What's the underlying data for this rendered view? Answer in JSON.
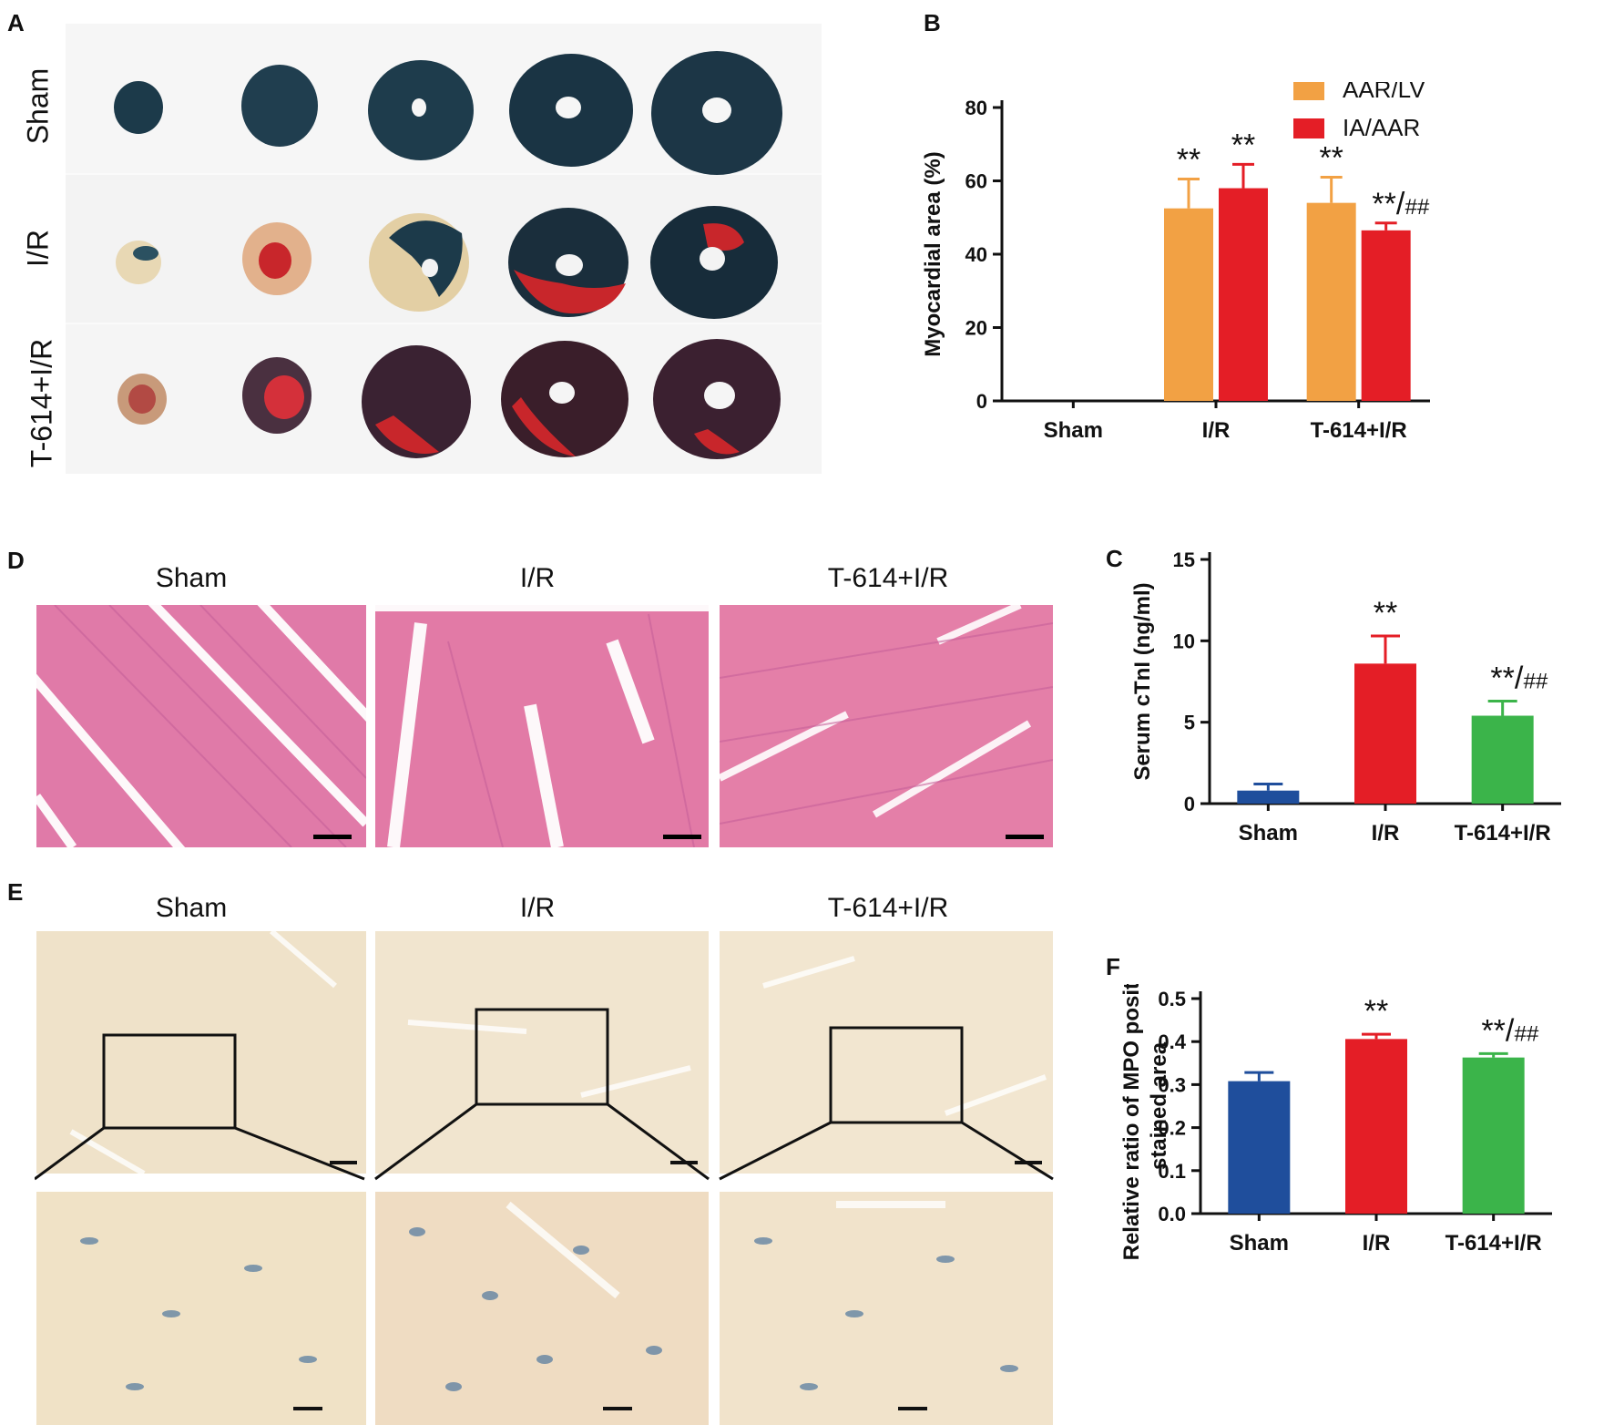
{
  "panels": {
    "a": {
      "letter": "A",
      "rows": [
        "Sham",
        "I/R",
        "T-614+I/R"
      ]
    },
    "d": {
      "letter": "D",
      "groups": [
        "Sham",
        "I/R",
        "T-614+I/R"
      ]
    },
    "e": {
      "letter": "E",
      "groups": [
        "Sham",
        "I/R",
        "T-614+I/R"
      ]
    }
  },
  "colors": {
    "orange": "#f2a144",
    "red": "#e41e26",
    "blue": "#1f4e9c",
    "green": "#3bb44a",
    "tissue_blue": "#1c3a4a",
    "infarct_red": "#c8262b",
    "he_pink": "#e27aa6",
    "ihc_beige": "#f1e4cc"
  },
  "chart_data": [
    {
      "panel": "B",
      "type": "bar",
      "categories": [
        "Sham",
        "I/R",
        "T-614+I/R"
      ],
      "ylabel": "Myocardial area (%)",
      "ylim": [
        0,
        80
      ],
      "yticks": [
        0,
        20,
        40,
        60,
        80
      ],
      "legend_position": "top-right",
      "series": [
        {
          "name": "AAR/LV",
          "color": "#f2a144",
          "values": [
            0,
            52.5,
            54.0
          ],
          "errors": [
            0,
            8.0,
            7.0
          ],
          "annotations": [
            "",
            "**",
            "**"
          ]
        },
        {
          "name": "IA/AAR",
          "color": "#e41e26",
          "values": [
            0,
            58.0,
            46.5
          ],
          "errors": [
            0,
            6.5,
            2.0
          ],
          "annotations": [
            "",
            "**",
            "**/##"
          ]
        }
      ]
    },
    {
      "panel": "C",
      "type": "bar",
      "categories": [
        "Sham",
        "I/R",
        "T-614+I/R"
      ],
      "ylabel": "Serum cTnI  (ng/ml)",
      "ylim": [
        0,
        15
      ],
      "yticks": [
        0,
        5,
        10,
        15
      ],
      "values": [
        0.8,
        8.6,
        5.4
      ],
      "errors": [
        0.4,
        1.7,
        0.9
      ],
      "colors": [
        "#1f4e9c",
        "#e41e26",
        "#3bb44a"
      ],
      "annotations": [
        "",
        "**",
        "**/##"
      ]
    },
    {
      "panel": "F",
      "type": "bar",
      "categories": [
        "Sham",
        "I/R",
        "T-614+I/R"
      ],
      "ylabel_lines": [
        "Relative ratio of MPO positive",
        "stained area"
      ],
      "ylim": [
        0,
        0.5
      ],
      "yticks": [
        "0.0",
        "0.1",
        "0.2",
        "0.3",
        "0.4",
        "0.5"
      ],
      "values": [
        0.308,
        0.406,
        0.363
      ],
      "errors": [
        0.02,
        0.011,
        0.009
      ],
      "colors": [
        "#1f4e9c",
        "#e41e26",
        "#3bb44a"
      ],
      "annotations": [
        "",
        "**",
        "**/##"
      ]
    }
  ]
}
